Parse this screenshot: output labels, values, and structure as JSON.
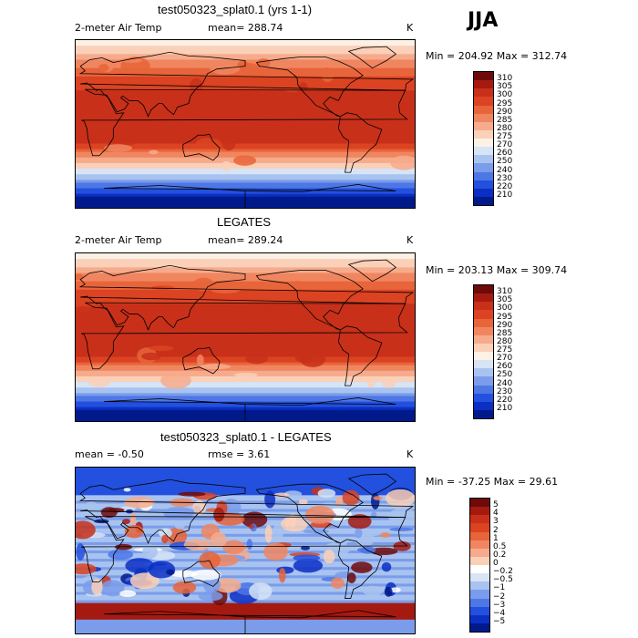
{
  "season": "JJA",
  "panels": [
    {
      "title": "test050323_splat0.1 (yrs 1-1)",
      "left": "2-meter Air Temp",
      "mid": "mean= 288.74",
      "unit": "K",
      "minmax": "Min = 204.92 Max = 312.74",
      "labels": [
        "310",
        "305",
        "300",
        "295",
        "290",
        "285",
        "280",
        "275",
        "270",
        "260",
        "250",
        "240",
        "230",
        "220",
        "210"
      ],
      "colors": [
        "#6e0a0a",
        "#a51a10",
        "#c8301a",
        "#db4322",
        "#e8643a",
        "#f08660",
        "#f6ab8c",
        "#fad0b8",
        "#fdf0e4",
        "#d6e4f6",
        "#a8c3ef",
        "#7b9cea",
        "#4e77e6",
        "#2350de",
        "#0b2fc4",
        "#001a8c"
      ],
      "type": "temp"
    },
    {
      "title": "LEGATES",
      "left": "2-meter Air Temp",
      "mid": "mean= 289.24",
      "unit": "K",
      "minmax": "Min = 203.13 Max = 309.74",
      "labels": [
        "310",
        "305",
        "300",
        "295",
        "290",
        "285",
        "280",
        "275",
        "270",
        "260",
        "250",
        "240",
        "230",
        "220",
        "210"
      ],
      "colors": [
        "#6e0a0a",
        "#a51a10",
        "#c8301a",
        "#db4322",
        "#e8643a",
        "#f08660",
        "#f6ab8c",
        "#fad0b8",
        "#fdf0e4",
        "#d6e4f6",
        "#a8c3ef",
        "#7b9cea",
        "#4e77e6",
        "#2350de",
        "#0b2fc4",
        "#001a8c"
      ],
      "type": "temp"
    },
    {
      "title": "test050323_splat0.1 - LEGATES",
      "left": "mean =  -0.50",
      "mid": "rmse =   3.61",
      "unit": "K",
      "minmax": "Min = -37.25 Max =  29.61",
      "labels": [
        "5",
        "4",
        "3",
        "2",
        "1",
        "0.5",
        "0.2",
        "0",
        "−0.2",
        "−0.5",
        "−1",
        "−2",
        "−3",
        "−4",
        "−5"
      ],
      "colors": [
        "#6e0a0a",
        "#a51a10",
        "#c8301a",
        "#db4322",
        "#e8643a",
        "#f08660",
        "#f6ab8c",
        "#fad0b8",
        "#ffffff",
        "#d6e4f6",
        "#a8c3ef",
        "#7b9cea",
        "#4e77e6",
        "#2350de",
        "#0b2fc4",
        "#001a8c"
      ],
      "type": "diff"
    }
  ]
}
